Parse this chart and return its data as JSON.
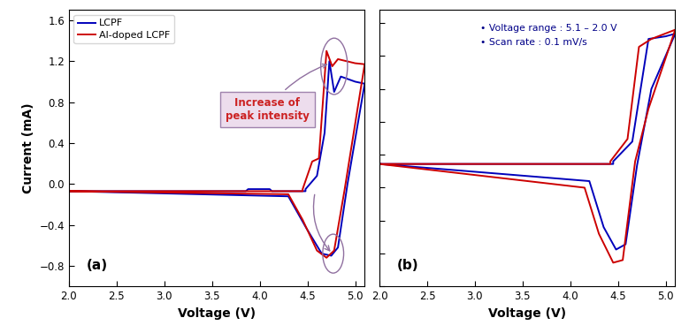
{
  "title_a": "(a)",
  "title_b": "(b)",
  "xlabel": "Voltage (V)",
  "ylabel": "Current (mA)",
  "xlim": [
    2.0,
    5.1
  ],
  "ylim_a": [
    -1.0,
    1.7
  ],
  "ylim_b": [
    -1.0,
    1.1
  ],
  "xticks": [
    2.0,
    2.5,
    3.0,
    3.5,
    4.0,
    4.5,
    5.0
  ],
  "yticks_a": [
    -0.8,
    -0.4,
    0.0,
    0.4,
    0.8,
    1.2,
    1.6
  ],
  "legend_labels": [
    "LCPF",
    "Al-doped LCPF"
  ],
  "color_blue": "#0000BB",
  "color_red": "#CC0000",
  "annotation_text": "Increase of\npeak intensity",
  "info_text": "• Voltage range : 5.1 – 2.0 V\n• Scan rate : 0.1 mV/s",
  "lw": 1.4
}
